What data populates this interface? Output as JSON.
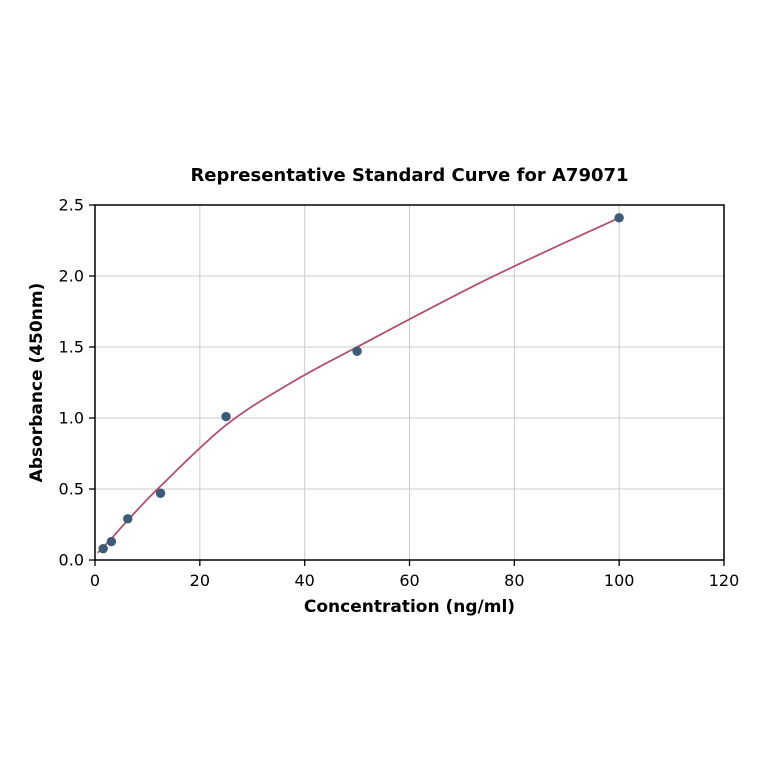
{
  "chart_data": {
    "type": "scatter",
    "title": "Representative Standard Curve for A79071",
    "xlabel": "Concentration (ng/ml)",
    "ylabel": "Absorbance (450nm)",
    "xlim": [
      0,
      120
    ],
    "ylim": [
      0,
      2.5
    ],
    "x_ticks": [
      0,
      20,
      40,
      60,
      80,
      100,
      120
    ],
    "y_ticks": [
      0.0,
      0.5,
      1.0,
      1.5,
      2.0,
      2.5
    ],
    "grid": true,
    "legend": "none",
    "points": [
      {
        "x": 1.56,
        "y": 0.08
      },
      {
        "x": 3.13,
        "y": 0.13
      },
      {
        "x": 6.25,
        "y": 0.29
      },
      {
        "x": 12.5,
        "y": 0.47
      },
      {
        "x": 25,
        "y": 1.01
      },
      {
        "x": 50,
        "y": 1.47
      },
      {
        "x": 100,
        "y": 2.41
      }
    ],
    "curve_points": [
      {
        "x": 0.5,
        "y": 0.05
      },
      {
        "x": 1.56,
        "y": 0.09
      },
      {
        "x": 3.13,
        "y": 0.15
      },
      {
        "x": 6.25,
        "y": 0.28
      },
      {
        "x": 12.5,
        "y": 0.52
      },
      {
        "x": 25,
        "y": 0.95
      },
      {
        "x": 37.5,
        "y": 1.25
      },
      {
        "x": 50,
        "y": 1.5
      },
      {
        "x": 75,
        "y": 1.98
      },
      {
        "x": 100,
        "y": 2.41
      }
    ],
    "colors": {
      "curve": "#b4506a",
      "points": "#3d5a78",
      "grid": "#cccccc",
      "axis": "#000000",
      "background": "#ffffff"
    }
  }
}
